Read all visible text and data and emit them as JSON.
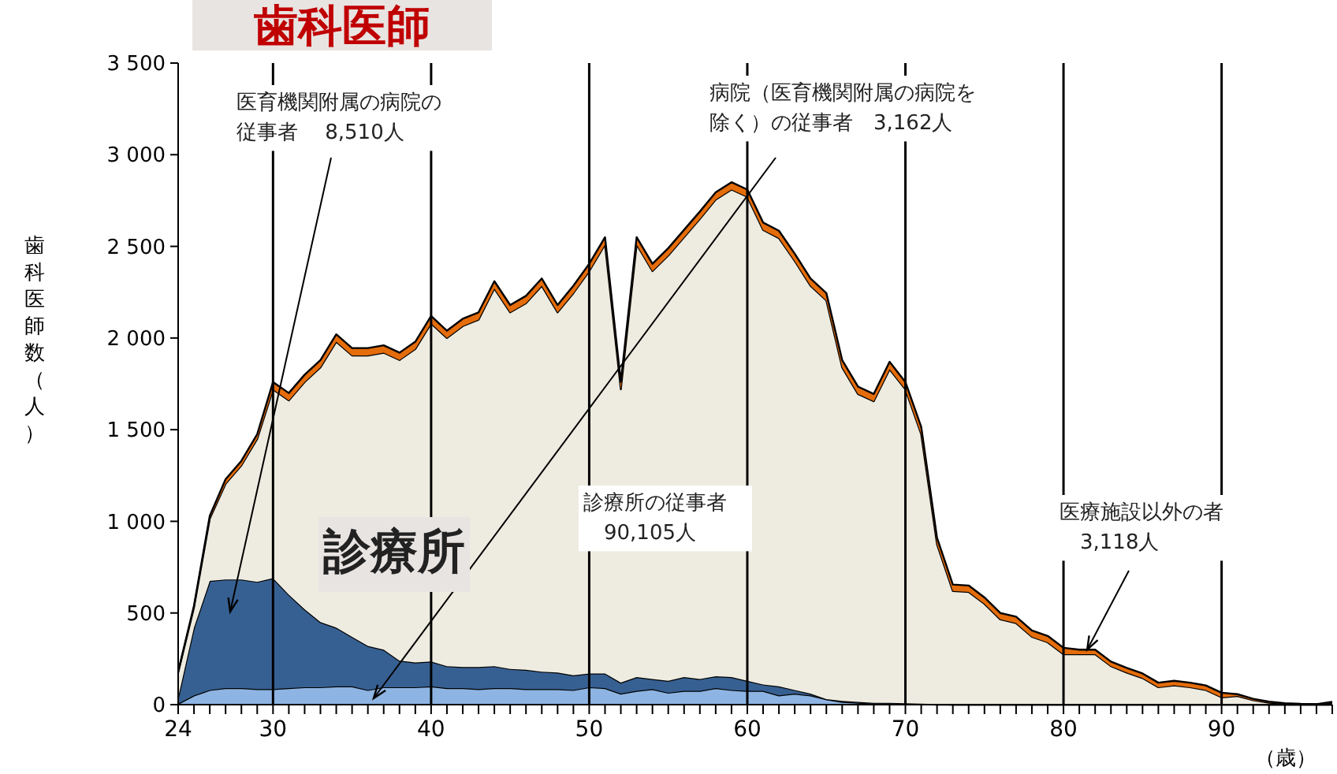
{
  "chart_data": {
    "type": "area",
    "stacked": true,
    "title": "歯科医師",
    "ylabel": "歯科医師数（人）",
    "xlabel": "（歳）",
    "x": [
      24,
      25,
      26,
      27,
      28,
      29,
      30,
      31,
      32,
      33,
      34,
      35,
      36,
      37,
      38,
      39,
      40,
      41,
      42,
      43,
      44,
      45,
      46,
      47,
      48,
      49,
      50,
      51,
      52,
      53,
      54,
      55,
      56,
      57,
      58,
      59,
      60,
      61,
      62,
      63,
      64,
      65,
      66,
      67,
      68,
      69,
      70,
      71,
      72,
      73,
      74,
      75,
      76,
      77,
      78,
      79,
      80,
      81,
      82,
      83,
      84,
      85,
      86,
      87,
      88,
      89,
      90,
      91,
      92,
      93,
      94,
      95,
      96,
      97
    ],
    "series": [
      {
        "color": "#8db4e2",
        "values": [
          5,
          50,
          80,
          90,
          90,
          85,
          85,
          90,
          95,
          95,
          100,
          100,
          80,
          95,
          95,
          95,
          100,
          90,
          90,
          85,
          90,
          90,
          85,
          85,
          85,
          80,
          95,
          90,
          60,
          75,
          85,
          65,
          75,
          75,
          90,
          80,
          75,
          75,
          50,
          60,
          50,
          30,
          15,
          10,
          5,
          5,
          5,
          3,
          0,
          0,
          0,
          0,
          0,
          0,
          0,
          0,
          0,
          0,
          0,
          0,
          0,
          0,
          0,
          0,
          0,
          0,
          0,
          0,
          0,
          0,
          0,
          0,
          0,
          0
        ]
      },
      {
        "color": "#376092",
        "values": [
          35,
          370,
          595,
          593,
          593,
          585,
          605,
          510,
          425,
          355,
          320,
          270,
          240,
          205,
          145,
          135,
          135,
          120,
          115,
          120,
          120,
          105,
          105,
          95,
          90,
          80,
          75,
          80,
          60,
          75,
          55,
          65,
          75,
          65,
          65,
          70,
          55,
          35,
          50,
          20,
          10,
          0,
          5,
          5,
          5,
          5,
          3,
          2,
          3,
          0,
          0,
          0,
          0,
          0,
          0,
          0,
          0,
          0,
          0,
          0,
          0,
          0,
          0,
          0,
          0,
          0,
          0,
          0,
          0,
          0,
          0,
          0,
          0,
          0
        ]
      },
      {
        "color": "#eeece1",
        "values": [
          135,
          110,
          340,
          522,
          622,
          780,
          1030,
          1060,
          1240,
          1390,
          1560,
          1535,
          1585,
          1620,
          1640,
          1710,
          1845,
          1790,
          1860,
          1895,
          2060,
          1945,
          2000,
          2105,
          1965,
          2085,
          2195,
          2340,
          1600,
          2360,
          2225,
          2320,
          2400,
          2510,
          2600,
          2660,
          2640,
          2480,
          2445,
          2340,
          2225,
          2175,
          1820,
          1680,
          1645,
          1820,
          1712,
          1470,
          872,
          620,
          615,
          550,
          465,
          445,
          370,
          340,
          275,
          275,
          275,
          210,
          175,
          145,
          95,
          105,
          95,
          80,
          40,
          47,
          24,
          11,
          5,
          2,
          1,
          10
        ]
      },
      {
        "color": "#e46c0a",
        "values": [
          5,
          10,
          15,
          25,
          25,
          25,
          40,
          40,
          40,
          40,
          40,
          40,
          40,
          40,
          40,
          40,
          40,
          40,
          40,
          40,
          40,
          40,
          40,
          40,
          40,
          40,
          40,
          40,
          40,
          40,
          40,
          40,
          40,
          40,
          40,
          40,
          40,
          40,
          40,
          40,
          40,
          40,
          40,
          40,
          40,
          40,
          40,
          40,
          35,
          35,
          35,
          35,
          35,
          35,
          35,
          35,
          35,
          25,
          25,
          25,
          25,
          25,
          25,
          25,
          25,
          25,
          25,
          10,
          8,
          5,
          3,
          2,
          1,
          5
        ]
      }
    ],
    "xlim": [
      24,
      97
    ],
    "xticks": [
      24,
      {
        "value": 25,
        "label": null
      },
      {
        "value": 26,
        "label": null
      },
      {
        "value": 27,
        "label": null
      },
      {
        "value": 28,
        "label": null
      },
      {
        "value": 29,
        "label": null
      },
      30,
      {
        "value": 31,
        "label": null
      },
      {
        "value": 32,
        "label": null
      },
      {
        "value": 33,
        "label": null
      },
      {
        "value": 34,
        "label": null
      },
      {
        "value": 35,
        "label": null
      },
      {
        "value": 36,
        "label": null
      },
      {
        "value": 37,
        "label": null
      },
      {
        "value": 38,
        "label": null
      },
      {
        "value": 39,
        "label": null
      },
      40,
      {
        "value": 41,
        "label": null
      },
      {
        "value": 42,
        "label": null
      },
      {
        "value": 43,
        "label": null
      },
      {
        "value": 44,
        "label": null
      },
      {
        "value": 45,
        "label": null
      },
      {
        "value": 46,
        "label": null
      },
      {
        "value": 47,
        "label": null
      },
      {
        "value": 48,
        "label": null
      },
      {
        "value": 49,
        "label": null
      },
      50,
      {
        "value": 51,
        "label": null
      },
      {
        "value": 52,
        "label": null
      },
      {
        "value": 53,
        "label": null
      },
      {
        "value": 54,
        "label": null
      },
      {
        "value": 55,
        "label": null
      },
      {
        "value": 56,
        "label": null
      },
      {
        "value": 57,
        "label": null
      },
      {
        "value": 58,
        "label": null
      },
      {
        "value": 59,
        "label": null
      },
      60,
      {
        "value": 61,
        "label": null
      },
      {
        "value": 62,
        "label": null
      },
      {
        "value": 63,
        "label": null
      },
      {
        "value": 64,
        "label": null
      },
      {
        "value": 65,
        "label": null
      },
      {
        "value": 66,
        "label": null
      },
      {
        "value": 67,
        "label": null
      },
      {
        "value": 68,
        "label": null
      },
      {
        "value": 69,
        "label": null
      },
      70,
      {
        "value": 71,
        "label": null
      },
      {
        "value": 72,
        "label": null
      },
      {
        "value": 73,
        "label": null
      },
      {
        "value": 74,
        "label": null
      },
      {
        "value": 75,
        "label": null
      },
      {
        "value": 76,
        "label": null
      },
      {
        "value": 77,
        "label": null
      },
      {
        "value": 78,
        "label": null
      },
      {
        "value": 79,
        "label": null
      },
      80,
      {
        "value": 81,
        "label": null
      },
      {
        "value": 82,
        "label": null
      },
      {
        "value": 83,
        "label": null
      },
      {
        "value": 84,
        "label": null
      },
      {
        "value": 85,
        "label": null
      },
      {
        "value": 86,
        "label": null
      },
      {
        "value": 87,
        "label": null
      },
      {
        "value": 88,
        "label": null
      },
      {
        "value": 89,
        "label": null
      },
      90,
      {
        "value": 91,
        "label": null
      },
      {
        "value": 92,
        "label": null
      },
      {
        "value": 93,
        "label": null
      },
      {
        "value": 94,
        "label": null
      },
      {
        "value": 95,
        "label": null
      },
      {
        "value": 96,
        "label": null
      },
      {
        "value": 97,
        "label": null
      }
    ],
    "ylim": [
      0,
      3500
    ],
    "yticks": [
      0,
      500,
      {
        "value": 1000,
        "label": "1 000"
      },
      {
        "value": 1500,
        "label": "1 500"
      },
      {
        "value": 2000,
        "label": "2 000"
      },
      {
        "value": 2500,
        "label": "2 500"
      },
      {
        "value": 3000,
        "label": "3 000"
      },
      {
        "value": 3500,
        "label": "3 500"
      }
    ],
    "grid": "x",
    "annotations": [
      "医育機関附属の病院の従事者　 8,510人",
      "病院（医育機関附属の病院を除く）の従事者　3,162人",
      "診療所",
      "診療所の従事者　90,105人",
      {
        "text": "医療施設以外の者　3,118人",
        "x": 81.5,
        "y": 300
      }
    ]
  }
}
